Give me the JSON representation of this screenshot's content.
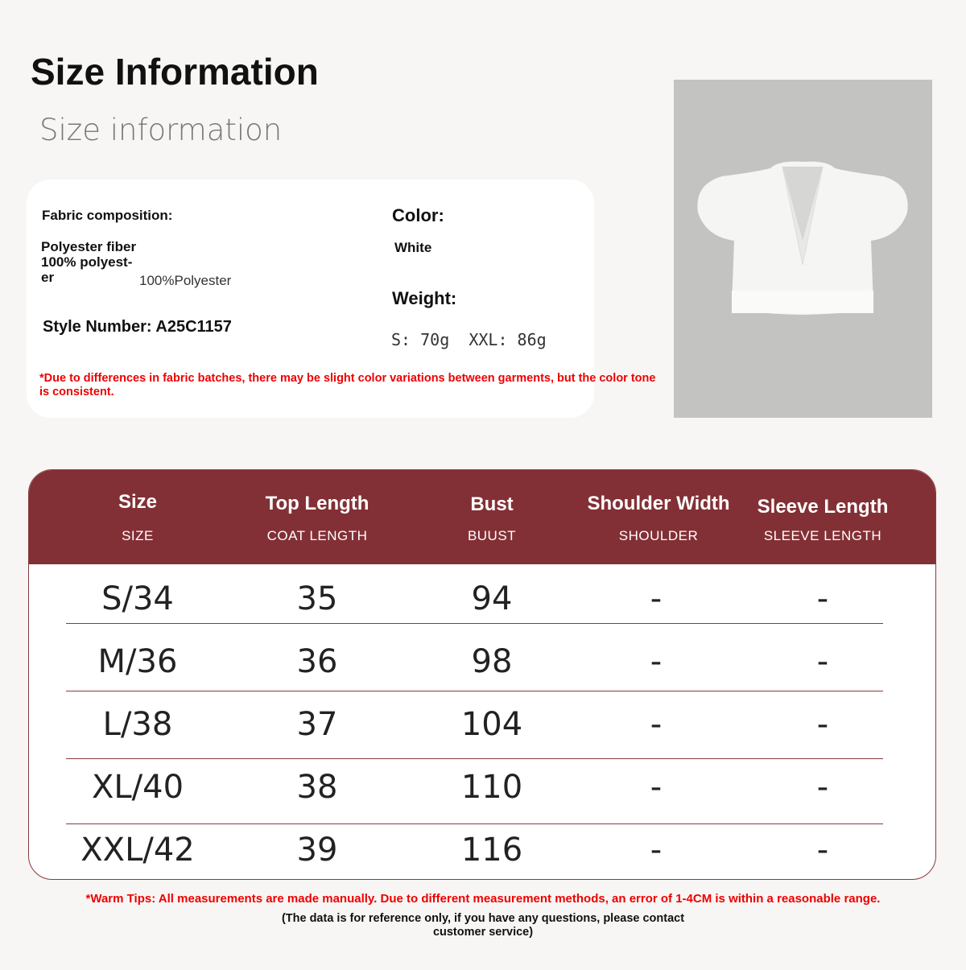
{
  "header": {
    "title": "Size Information",
    "subtitle": "Size information"
  },
  "info": {
    "fabric_label": "Fabric composition:",
    "fabric_value": "Polyester fiber 100% polyest-er",
    "fabric_value_en": "100%Polyester",
    "style_number": "Style Number: A25C1157",
    "color_label": "Color:",
    "color_value": "White",
    "weight_label": "Weight:",
    "weight_value": "S: 70g  XXL: 86g",
    "note": "*Due to differences in fabric batches, there may be slight color variations between garments, but the color tone is consistent."
  },
  "product_image": {
    "description_icon": "white-eyelet-flutter-sleeve-crop-top",
    "bg": "#c3c3c1"
  },
  "table": {
    "header_color": "#823035",
    "columns": [
      {
        "title": "Size",
        "sub": "SIZE"
      },
      {
        "title": "Top Length",
        "sub": "COAT LENGTH"
      },
      {
        "title": "Bust",
        "sub": "BUUST"
      },
      {
        "title": "Shoulder Width",
        "sub": "SHOULDER"
      },
      {
        "title": "Sleeve Length",
        "sub": "SLEEVE LENGTH"
      }
    ],
    "rows": [
      [
        "S/34",
        "35",
        "94",
        "-",
        "-"
      ],
      [
        "M/36",
        "36",
        "98",
        "-",
        "-"
      ],
      [
        "L/38",
        "37",
        "104",
        "-",
        "-"
      ],
      [
        "XL/40",
        "38",
        "110",
        "-",
        "-"
      ],
      [
        "XXL/42",
        "39",
        "116",
        "-",
        "-"
      ]
    ]
  },
  "footer": {
    "tip": "*Warm Tips: All measurements are made manually. Due to different measurement methods, an error of 1-4CM is within a reasonable range.",
    "reference": "(The data is for reference only, if you have any questions, please contact customer service)"
  }
}
